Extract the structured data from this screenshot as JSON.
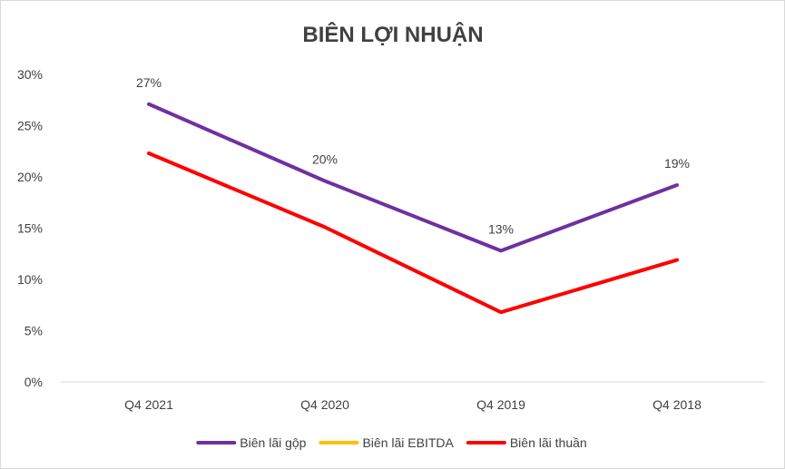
{
  "chart_data": {
    "type": "line",
    "title": "BIÊN LỢI NHUẬN",
    "xlabel": "",
    "ylabel": "",
    "categories": [
      "Q4 2021",
      "Q4 2020",
      "Q4 2019",
      "Q4 2018"
    ],
    "ylim": [
      0,
      30
    ],
    "yticks": [
      0,
      5,
      10,
      15,
      20,
      25,
      30
    ],
    "ytick_labels": [
      "0%",
      "5%",
      "10%",
      "15%",
      "20%",
      "25%",
      "30%"
    ],
    "grid": false,
    "legend_position": "bottom",
    "series": [
      {
        "name": "Biên lãi gộp",
        "color": "#7030a0",
        "values": [
          27.1,
          19.6,
          12.8,
          19.2
        ],
        "data_labels": [
          "27%",
          "20%",
          "13%",
          "19%"
        ]
      },
      {
        "name": "Biên lãi EBITDA",
        "color": "#ffc000",
        "values": [
          null,
          null,
          null,
          null
        ],
        "data_labels": []
      },
      {
        "name": "Biên lãi thuần",
        "color": "#ff0000",
        "values": [
          22.3,
          15.1,
          6.8,
          11.9
        ],
        "data_labels": []
      }
    ]
  }
}
